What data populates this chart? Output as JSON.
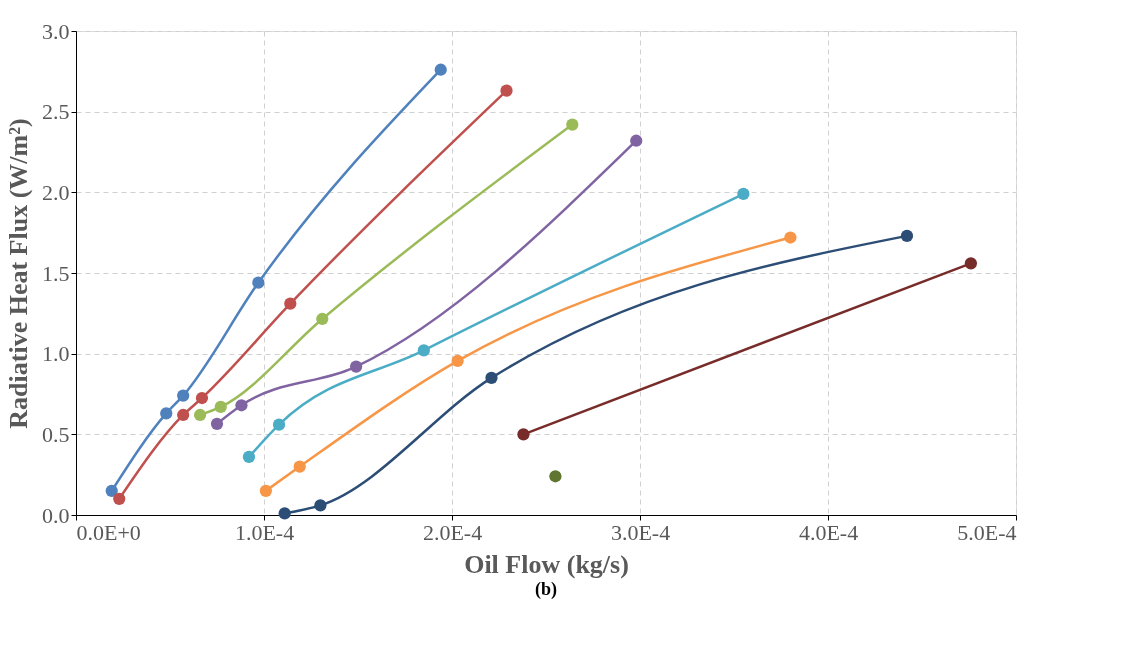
{
  "chart_data": {
    "type": "line",
    "xlabel": "Oil Flow (kg/s)",
    "ylabel": "Radiative Heat Flux (W/m²)",
    "annotations": [
      "(b)"
    ],
    "xlim": [
      0,
      0.0005
    ],
    "ylim": [
      0,
      3
    ],
    "xticks": [
      {
        "value": 0,
        "label": "0.0E+0"
      },
      {
        "value": 0.0001,
        "label": "1.0E-4"
      },
      {
        "value": 0.0002,
        "label": "2.0E-4"
      },
      {
        "value": 0.0003,
        "label": "3.0E-4"
      },
      {
        "value": 0.0004,
        "label": "4.0E-4"
      },
      {
        "value": 0.0005,
        "label": "5.0E-4"
      }
    ],
    "yticks": [
      {
        "value": 0,
        "label": "0.0"
      },
      {
        "value": 0.5,
        "label": "0.5"
      },
      {
        "value": 1,
        "label": "1.0"
      },
      {
        "value": 1.5,
        "label": "1.5"
      },
      {
        "value": 2,
        "label": "2.0"
      },
      {
        "value": 2.5,
        "label": "2.5"
      },
      {
        "value": 3,
        "label": "3.0"
      }
    ],
    "grid": true,
    "marker": "circle",
    "line_style": "solid",
    "series": [
      {
        "color": "#4f81bd",
        "x": [
          1.9e-05,
          4.8e-05,
          5.7e-05,
          9.7e-05,
          0.000194
        ],
        "values": [
          0.15,
          0.63,
          0.74,
          1.44,
          2.76
        ]
      },
      {
        "color": "#c0504d",
        "x": [
          2.3e-05,
          5.7e-05,
          6.7e-05,
          0.000114,
          0.000229
        ],
        "values": [
          0.1,
          0.62,
          0.725,
          1.31,
          2.63
        ]
      },
      {
        "color": "#9bbb59",
        "x": [
          6.6e-05,
          7.7e-05,
          0.000131,
          0.000264
        ],
        "values": [
          0.62,
          0.67,
          1.215,
          2.42
        ]
      },
      {
        "color": "#8064a2",
        "x": [
          7.5e-05,
          8.8e-05,
          0.000149,
          0.000298
        ],
        "values": [
          0.565,
          0.68,
          0.92,
          2.32
        ]
      },
      {
        "color": "#4bacc6",
        "x": [
          9.2e-05,
          0.000108,
          0.000185,
          0.000355
        ],
        "values": [
          0.36,
          0.56,
          1.02,
          1.99
        ]
      },
      {
        "color": "#f79646",
        "x": [
          0.000101,
          0.000119,
          0.000203,
          0.00038
        ],
        "values": [
          0.15,
          0.3,
          0.955,
          1.72
        ]
      },
      {
        "color": "#2c4d75",
        "x": [
          0.000111,
          0.00013,
          0.000221,
          0.000442
        ],
        "values": [
          0.01,
          0.06,
          0.85,
          1.73
        ]
      },
      {
        "color": "#772c2a",
        "x": [
          0.000238,
          0.000476
        ],
        "values": [
          0.5,
          1.56
        ]
      },
      {
        "color": "#5f7530",
        "x": [
          0.000255
        ],
        "values": [
          0.24
        ]
      }
    ]
  }
}
